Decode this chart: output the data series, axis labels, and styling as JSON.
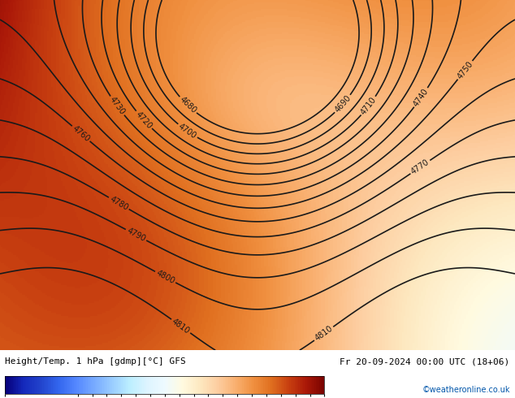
{
  "title_left": "Height/Temp. 1 hPa [gdmp][°C] GFS",
  "title_right": "Fr 20-09-2024 00:00 UTC (18+06)",
  "credit": "©weatheronline.co.uk",
  "colorbar_ticks": [
    -80,
    -55,
    -50,
    -45,
    -40,
    -35,
    -30,
    -25,
    -20,
    -15,
    -10,
    -5,
    0,
    5,
    10,
    15,
    20,
    25,
    30
  ],
  "colorbar_colors": [
    "#0a1aab",
    "#1a3dcc",
    "#2255dd",
    "#3377ee",
    "#4499ff",
    "#66bbff",
    "#88ddff",
    "#aaeeff",
    "#ccf4ff",
    "#ddfaff",
    "#fdf5e0",
    "#fde8c0",
    "#fdd8a0",
    "#fdc880",
    "#f9a855",
    "#f08830",
    "#d86020",
    "#c03010",
    "#9a1005"
  ],
  "background_color": "#f5c98a",
  "figure_bg": "#f5c98a",
  "contour_color": "#1a1a1a",
  "contour_linewidth": 1.2,
  "contour_label_fontsize": 7,
  "figsize": [
    6.34,
    4.9
  ],
  "dpi": 100,
  "xlim": [
    0,
    1
  ],
  "ylim": [
    0,
    1
  ]
}
